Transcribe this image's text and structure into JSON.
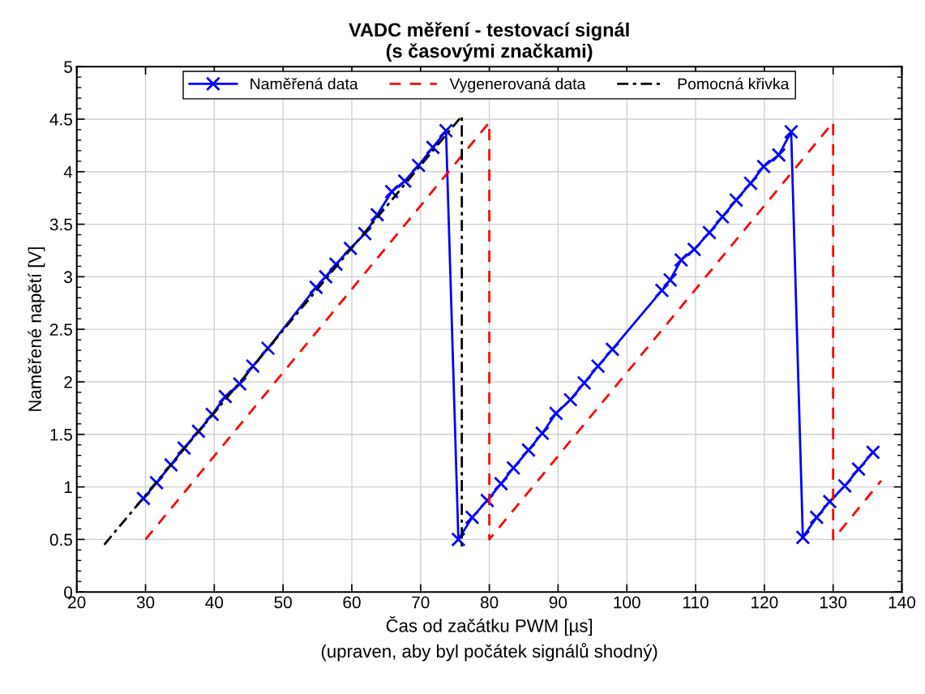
{
  "chart_data": {
    "type": "line",
    "title": "VADC měření - testovací signál\n(s časovými značkami)",
    "xlabel": "Čas od začátku PWM [µs]\n(upraven, aby byl počátek signálů shodný)",
    "ylabel": "Naměřené napětí [V]",
    "series": [
      {
        "name": "Naměřená data",
        "color": "#0000ff",
        "marker": "cross",
        "line_style": "solid",
        "x": [
          29.7,
          31.6,
          33.7,
          35.6,
          37.7,
          39.7,
          41.6,
          43.7,
          45.6,
          47.8,
          54.8,
          56.2,
          57.7,
          59.8,
          61.9,
          63.7,
          65.8,
          67.7,
          69.7,
          71.8,
          73.7,
          75.5,
          77.5,
          79.7,
          81.7,
          83.5,
          85.7,
          87.7,
          89.7,
          91.8,
          93.8,
          95.8,
          97.9,
          105.1,
          106.3,
          107.9,
          109.8,
          112.0,
          113.9,
          115.9,
          118.0,
          119.9,
          122.1,
          123.9,
          125.6,
          127.6,
          129.5,
          131.7,
          133.7,
          135.8
        ],
        "values": [
          0.89,
          1.04,
          1.21,
          1.37,
          1.53,
          1.69,
          1.86,
          1.98,
          2.15,
          2.32,
          2.9,
          3.0,
          3.12,
          3.27,
          3.41,
          3.59,
          3.81,
          3.91,
          4.06,
          4.23,
          4.39,
          0.5,
          0.71,
          0.87,
          1.03,
          1.18,
          1.35,
          1.51,
          1.7,
          1.83,
          1.99,
          2.15,
          2.31,
          2.87,
          2.97,
          3.16,
          3.26,
          3.42,
          3.57,
          3.73,
          3.89,
          4.05,
          4.16,
          4.38,
          0.52,
          0.71,
          0.86,
          1.01,
          1.17,
          1.33
        ]
      },
      {
        "name": "Vygenerovaná data",
        "color": "#ff0000",
        "marker": "none",
        "line_style": "dashed",
        "x": [
          30,
          80,
          80,
          130,
          130,
          137
        ],
        "values": [
          0.5,
          4.47,
          0.5,
          4.47,
          0.5,
          1.06
        ]
      },
      {
        "name": "Pomocná křivka",
        "color": "#000000",
        "marker": "none",
        "line_style": "dashdot",
        "x": [
          24,
          76,
          76
        ],
        "values": [
          0.45,
          4.53,
          0.42
        ]
      }
    ],
    "xlim": [
      20,
      140
    ],
    "xticks": [
      20,
      30,
      40,
      50,
      60,
      70,
      80,
      90,
      100,
      110,
      120,
      130,
      140
    ],
    "ylim": [
      0,
      5
    ],
    "yticks": [
      0,
      0.5,
      1,
      1.5,
      2,
      2.5,
      3,
      3.5,
      4,
      4.5,
      5
    ],
    "grid": true,
    "legend": "top"
  }
}
